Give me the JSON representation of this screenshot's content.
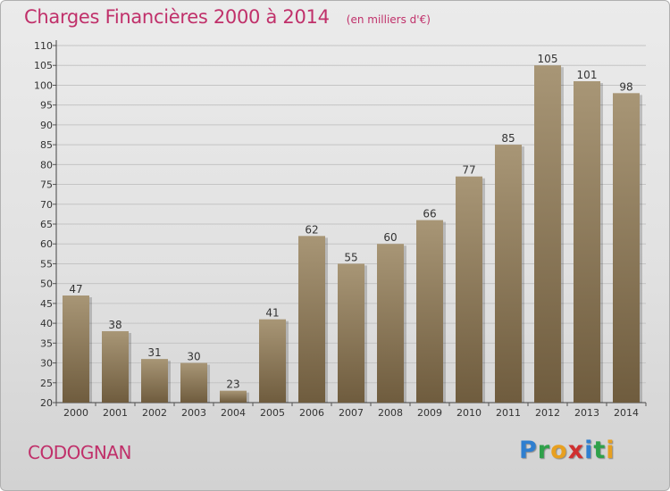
{
  "header": {
    "title": "Charges Financières 2000 à 2014",
    "unit": "(en milliers d'€)"
  },
  "footer": {
    "commune": "CODOGNAN",
    "logo_text": "Proxiti",
    "logo_letters": [
      {
        "ch": "P",
        "color": "#2f7fd0"
      },
      {
        "ch": "r",
        "color": "#2fa14a"
      },
      {
        "ch": "o",
        "color": "#e8a020"
      },
      {
        "ch": "x",
        "color": "#d03030"
      },
      {
        "ch": "i",
        "color": "#2f7fd0"
      },
      {
        "ch": "t",
        "color": "#2fa14a"
      },
      {
        "ch": "i",
        "color": "#e8a020"
      }
    ]
  },
  "colors": {
    "accent": "#c0306a",
    "bar_top": "#a89676",
    "bar_bottom": "#6f5c3e"
  },
  "chart_data": {
    "type": "bar",
    "categories": [
      "2000",
      "2001",
      "2002",
      "2003",
      "2004",
      "2005",
      "2006",
      "2007",
      "2008",
      "2009",
      "2010",
      "2011",
      "2012",
      "2013",
      "2014"
    ],
    "values": [
      47,
      38,
      31,
      30,
      23,
      41,
      62,
      55,
      60,
      66,
      77,
      85,
      105,
      101,
      98
    ],
    "ylim": [
      20,
      110
    ],
    "yticks": [
      20,
      25,
      30,
      35,
      40,
      45,
      50,
      55,
      60,
      65,
      70,
      75,
      80,
      85,
      90,
      95,
      100,
      105,
      110
    ],
    "grid": true
  }
}
